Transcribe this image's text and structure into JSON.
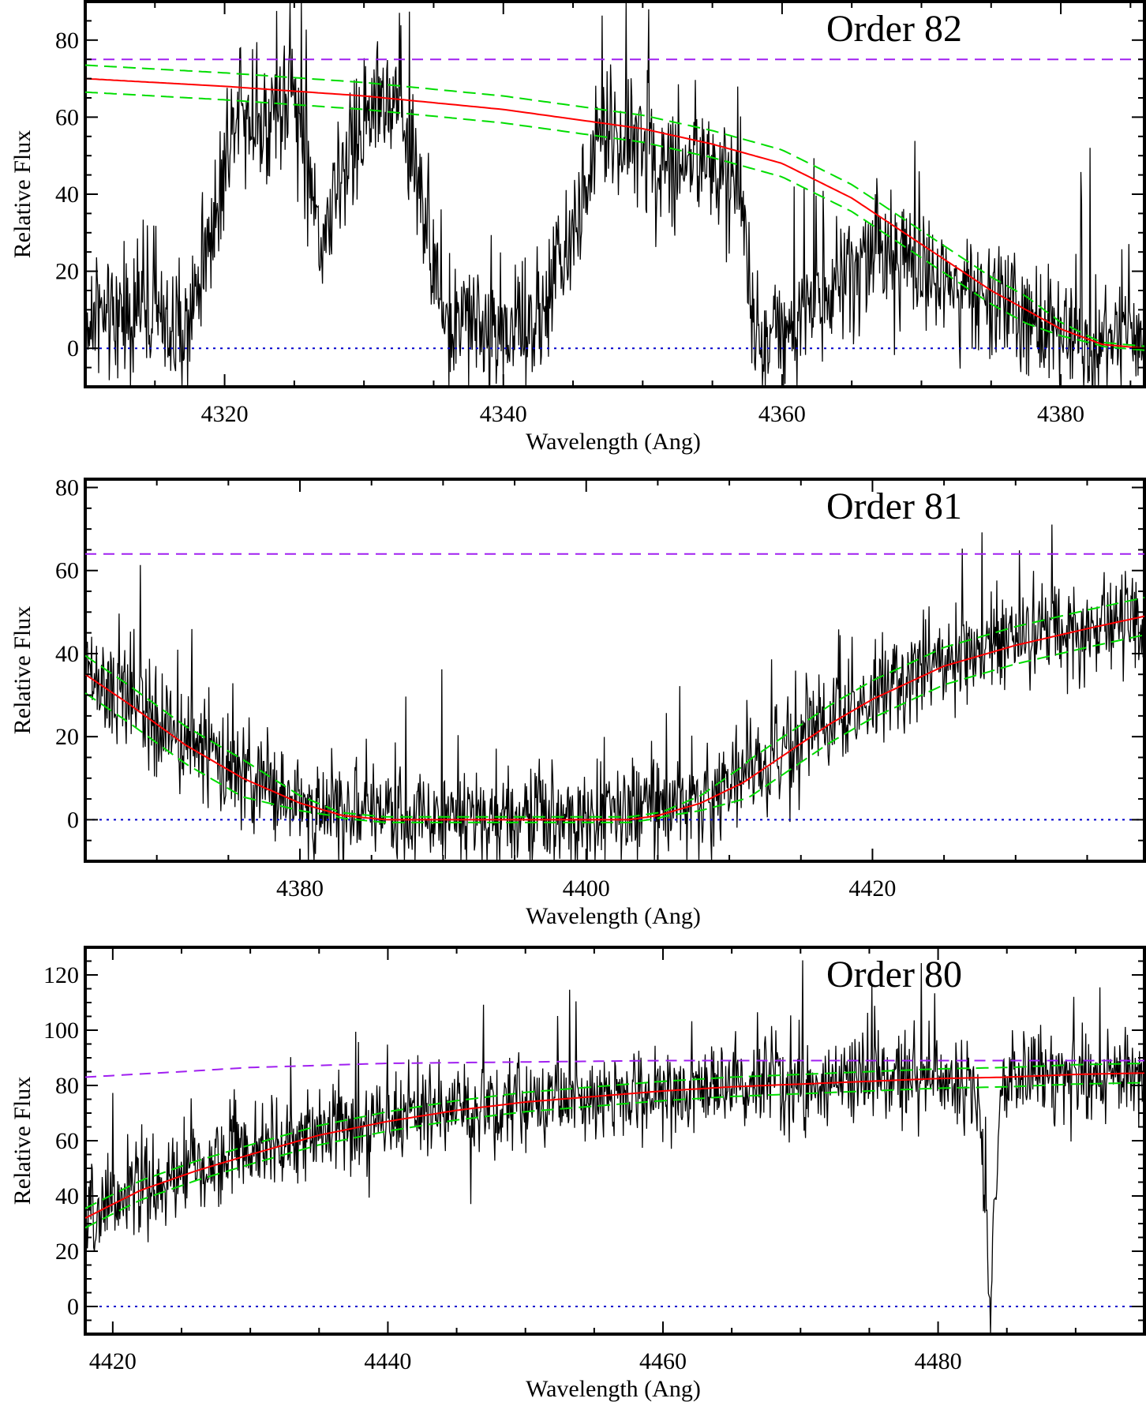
{
  "chart_data": [
    {
      "type": "line",
      "title": "Order 82",
      "xlabel": "Wavelength (Ang)",
      "ylabel": "Relative Flux",
      "xlim": [
        4310,
        4386
      ],
      "ylim": [
        -10,
        90
      ],
      "xticks": [
        4320,
        4340,
        4360,
        4380
      ],
      "yticks": [
        0,
        20,
        40,
        60,
        80
      ],
      "grid": false,
      "colors": {
        "spectrum": "#000000",
        "fit": "#ff0000",
        "fit_bounds": "#00dd00",
        "upper_level": "#a020f0",
        "zero": "#0000cc"
      },
      "spectrum": {
        "x": [
          4310,
          4314,
          4317,
          4319,
          4321,
          4323,
          4325,
          4327,
          4329,
          4331,
          4333,
          4335,
          4336,
          4338,
          4340,
          4342,
          4343,
          4345,
          4347,
          4349,
          4351,
          4353,
          4355,
          4357,
          4358,
          4360,
          4363,
          4366,
          4369,
          4371,
          4374,
          4377,
          4380,
          4383,
          4386
        ],
        "y": [
          5,
          12,
          2,
          30,
          66,
          58,
          66,
          28,
          52,
          66,
          58,
          25,
          3,
          8,
          5,
          5,
          10,
          30,
          55,
          54,
          52,
          48,
          46,
          44,
          3,
          5,
          15,
          24,
          25,
          20,
          14,
          8,
          4,
          3,
          5
        ],
        "noise": 16
      },
      "fit": {
        "x": [
          4310,
          4320,
          4330,
          4340,
          4350,
          4355,
          4360,
          4365,
          4370,
          4375,
          4380,
          4383,
          4386
        ],
        "y": [
          70,
          68,
          65.5,
          62,
          57,
          53,
          48,
          39,
          27,
          15,
          5,
          1,
          0
        ]
      },
      "fit_band": 3.5,
      "upper_level": 75,
      "zero_level": 0
    },
    {
      "type": "line",
      "title": "Order 81",
      "xlabel": "Wavelength (Ang)",
      "ylabel": "Relative Flux",
      "xlim": [
        4365,
        4439
      ],
      "ylim": [
        -10,
        82
      ],
      "xticks": [
        4380,
        4400,
        4420
      ],
      "yticks": [
        0,
        20,
        40,
        60,
        80
      ],
      "grid": false,
      "colors": {
        "spectrum": "#000000",
        "fit": "#ff0000",
        "fit_bounds": "#00dd00",
        "upper_level": "#a020f0",
        "zero": "#0000cc"
      },
      "spectrum": {
        "x": [
          4365,
          4368,
          4372,
          4376,
          4380,
          4384,
          4388,
          4392,
          4396,
          4400,
          4404,
          4407,
          4410,
          4413,
          4416,
          4419,
          4422,
          4426,
          4430,
          4434,
          4437,
          4439
        ],
        "y": [
          34,
          28,
          20,
          10,
          4,
          2,
          1,
          2,
          2,
          1,
          3,
          4,
          9,
          14,
          20,
          27,
          34,
          39,
          43,
          45,
          47,
          48
        ],
        "noise": 12
      },
      "fit": {
        "x": [
          4365,
          4368,
          4372,
          4376,
          4380,
          4383,
          4386,
          4390,
          4395,
          4400,
          4403,
          4405,
          4408,
          4411,
          4414,
          4417,
          4420,
          4425,
          4430,
          4435,
          4439
        ],
        "y": [
          35,
          28,
          18,
          10,
          4,
          1,
          0,
          0,
          0,
          0,
          0,
          1,
          4,
          9,
          16,
          23,
          29,
          37,
          42,
          46,
          49
        ]
      },
      "fit_band": 4.5,
      "upper_level": 64,
      "zero_level": 0
    },
    {
      "type": "line",
      "title": "Order 80",
      "xlabel": "Wavelength (Ang)",
      "ylabel": "Relative Flux",
      "xlim": [
        4418,
        4495
      ],
      "ylim": [
        -10,
        130
      ],
      "xticks": [
        4420,
        4440,
        4460,
        4480
      ],
      "yticks": [
        0,
        20,
        40,
        60,
        80,
        100,
        120
      ],
      "grid": false,
      "colors": {
        "spectrum": "#000000",
        "fit": "#ff0000",
        "fit_bounds": "#00dd00",
        "upper_level": "#a020f0",
        "zero": "#0000cc"
      },
      "spectrum": {
        "x": [
          4418,
          4420,
          4425,
          4430,
          4435,
          4440,
          4445,
          4450,
          4455,
          4460,
          4465,
          4470,
          4475,
          4480,
          4483,
          4483.8,
          4484.5,
          4486,
          4490,
          4495
        ],
        "y": [
          30,
          38,
          48,
          56,
          63,
          68,
          71,
          74,
          76,
          78,
          80,
          80,
          82,
          81,
          75,
          -5,
          75,
          84,
          84,
          84
        ],
        "noise": 15
      },
      "fit": {
        "x": [
          4418,
          4422,
          4426,
          4430,
          4435,
          4440,
          4445,
          4450,
          4455,
          4460,
          4465,
          4470,
          4475,
          4480,
          4485,
          4490,
          4495
        ],
        "y": [
          32,
          42,
          49,
          55,
          62,
          67,
          71,
          74,
          76,
          78,
          79.5,
          80.5,
          81.5,
          82.5,
          83,
          84,
          84.5
        ]
      },
      "fit_band": 3.5,
      "upper_level_curve": {
        "x": [
          4418,
          4425,
          4430,
          4440,
          4450,
          4460,
          4470,
          4480,
          4490,
          4495
        ],
        "y": [
          83,
          85,
          86.5,
          88,
          88.5,
          89,
          89,
          89,
          89,
          89
        ]
      },
      "zero_level": 0
    }
  ]
}
